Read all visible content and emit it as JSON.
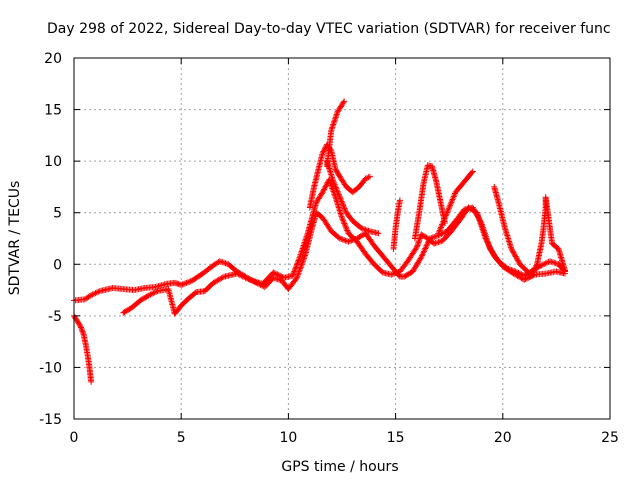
{
  "chart_data": {
    "type": "scatter",
    "title": "Day 298 of 2022, Sidereal Day-to-day VTEC variation (SDTVAR) for receiver func",
    "xlabel": "GPS time / hours",
    "ylabel": "SDTVAR / TECUs",
    "xlim": [
      0,
      25
    ],
    "ylim": [
      -15,
      20
    ],
    "xticks": [
      0,
      5,
      10,
      15,
      20,
      25
    ],
    "yticks": [
      -15,
      -10,
      -5,
      0,
      5,
      10,
      15,
      20
    ],
    "grid": true,
    "marker": "+",
    "series": [
      {
        "name": "main-trace",
        "color": "#ff0000",
        "points": [
          [
            0.0,
            -3.5
          ],
          [
            0.5,
            -3.4
          ],
          [
            0.8,
            -3.0
          ],
          [
            1.2,
            -2.6
          ],
          [
            1.8,
            -2.3
          ],
          [
            2.3,
            -2.4
          ],
          [
            2.8,
            -2.5
          ],
          [
            3.3,
            -2.3
          ],
          [
            3.8,
            -2.2
          ],
          [
            4.3,
            -1.9
          ],
          [
            4.7,
            -1.8
          ],
          [
            5.0,
            -2.0
          ],
          [
            5.5,
            -1.6
          ],
          [
            6.0,
            -0.9
          ],
          [
            6.5,
            -0.1
          ],
          [
            6.8,
            0.3
          ],
          [
            7.2,
            0.0
          ],
          [
            7.6,
            -0.7
          ],
          [
            8.0,
            -1.2
          ],
          [
            8.5,
            -1.8
          ],
          [
            8.9,
            -2.2
          ],
          [
            9.3,
            -1.3
          ],
          [
            9.7,
            -1.6
          ],
          [
            10.0,
            -2.4
          ],
          [
            10.4,
            -1.3
          ],
          [
            10.8,
            1.0
          ],
          [
            11.1,
            3.5
          ],
          [
            11.3,
            5.0
          ],
          [
            11.6,
            4.5
          ],
          [
            12.0,
            3.2
          ],
          [
            12.4,
            2.5
          ],
          [
            12.8,
            2.2
          ],
          [
            13.2,
            2.5
          ],
          [
            13.6,
            3.0
          ],
          [
            14.0,
            1.8
          ],
          [
            14.4,
            0.8
          ],
          [
            14.8,
            -0.2
          ],
          [
            15.2,
            -1.2
          ],
          [
            15.4,
            -1.2
          ],
          [
            15.8,
            -0.7
          ],
          [
            16.2,
            0.7
          ],
          [
            16.6,
            2.5
          ],
          [
            17.0,
            2.8
          ],
          [
            17.4,
            3.2
          ],
          [
            17.8,
            4.2
          ],
          [
            18.2,
            5.3
          ],
          [
            18.6,
            5.5
          ],
          [
            19.0,
            4.0
          ],
          [
            19.4,
            1.5
          ],
          [
            19.8,
            0.3
          ],
          [
            20.2,
            -0.4
          ],
          [
            20.6,
            -0.7
          ],
          [
            21.0,
            -1.1
          ],
          [
            21.4,
            -0.6
          ],
          [
            21.8,
            -0.1
          ],
          [
            22.2,
            0.3
          ],
          [
            22.6,
            0.0
          ],
          [
            22.9,
            -0.7
          ]
        ]
      },
      {
        "name": "lower-trace",
        "color": "#ff0000",
        "points": [
          [
            2.3,
            -4.7
          ],
          [
            2.7,
            -4.2
          ],
          [
            3.1,
            -3.5
          ],
          [
            3.5,
            -3.0
          ],
          [
            3.9,
            -2.6
          ],
          [
            4.4,
            -2.4
          ],
          [
            4.7,
            -4.8
          ],
          [
            5.0,
            -4.0
          ],
          [
            5.3,
            -3.4
          ],
          [
            5.7,
            -2.7
          ],
          [
            6.1,
            -2.6
          ],
          [
            6.5,
            -1.8
          ],
          [
            7.0,
            -1.2
          ],
          [
            7.6,
            -0.9
          ],
          [
            8.2,
            -1.5
          ],
          [
            8.8,
            -1.9
          ],
          [
            9.3,
            -0.8
          ],
          [
            9.8,
            -1.3
          ],
          [
            10.2,
            -1.1
          ],
          [
            10.5,
            0.5
          ],
          [
            10.9,
            3.0
          ],
          [
            11.3,
            6.0
          ],
          [
            11.6,
            7.0
          ],
          [
            11.9,
            8.2
          ],
          [
            12.2,
            6.5
          ],
          [
            12.5,
            4.5
          ],
          [
            12.8,
            3.0
          ],
          [
            13.2,
            2.2
          ],
          [
            13.6,
            1.0
          ],
          [
            14.0,
            0.0
          ],
          [
            14.4,
            -0.8
          ],
          [
            14.8,
            -1.0
          ],
          [
            15.2,
            -0.7
          ],
          [
            15.6,
            0.4
          ],
          [
            16.0,
            1.7
          ],
          [
            16.2,
            2.9
          ],
          [
            16.5,
            2.5
          ],
          [
            16.8,
            2.0
          ],
          [
            17.2,
            2.3
          ],
          [
            17.6,
            3.2
          ],
          [
            18.0,
            4.3
          ],
          [
            18.4,
            5.5
          ],
          [
            18.8,
            5.0
          ],
          [
            19.2,
            2.5
          ],
          [
            19.6,
            0.8
          ],
          [
            20.0,
            -0.2
          ],
          [
            20.5,
            -0.9
          ],
          [
            21.0,
            -1.5
          ],
          [
            21.5,
            -1.0
          ],
          [
            22.0,
            -0.9
          ],
          [
            22.5,
            -0.7
          ],
          [
            22.9,
            -0.9
          ]
        ]
      },
      {
        "name": "early-dip",
        "color": "#ff0000",
        "points": [
          [
            0.0,
            -5.0
          ],
          [
            0.15,
            -5.5
          ],
          [
            0.3,
            -6.0
          ],
          [
            0.45,
            -6.8
          ],
          [
            0.55,
            -7.8
          ],
          [
            0.65,
            -9.0
          ],
          [
            0.72,
            -10.0
          ],
          [
            0.8,
            -11.4
          ]
        ]
      },
      {
        "name": "peak-arc",
        "color": "#ff0000",
        "points": [
          [
            11.0,
            5.5
          ],
          [
            11.2,
            7.5
          ],
          [
            11.4,
            9.2
          ],
          [
            11.6,
            10.8
          ],
          [
            11.8,
            11.6
          ],
          [
            12.0,
            11.0
          ],
          [
            12.2,
            9.2
          ],
          [
            12.4,
            8.5
          ],
          [
            12.7,
            7.5
          ],
          [
            13.0,
            7.0
          ],
          [
            13.3,
            7.5
          ],
          [
            13.6,
            8.3
          ],
          [
            13.8,
            8.5
          ]
        ]
      },
      {
        "name": "peak-spike",
        "color": "#ff0000",
        "points": [
          [
            11.8,
            9.5
          ],
          [
            12.0,
            13.0
          ],
          [
            12.3,
            14.8
          ],
          [
            12.6,
            15.8
          ]
        ]
      },
      {
        "name": "mid-arc",
        "color": "#ff0000",
        "points": [
          [
            11.8,
            10.0
          ],
          [
            12.1,
            8.0
          ],
          [
            12.4,
            6.5
          ],
          [
            12.7,
            5.0
          ],
          [
            13.0,
            4.2
          ],
          [
            13.4,
            3.5
          ],
          [
            13.8,
            3.2
          ],
          [
            14.2,
            3.0
          ]
        ]
      },
      {
        "name": "hump-16",
        "color": "#ff0000",
        "points": [
          [
            15.9,
            2.5
          ],
          [
            16.1,
            5.0
          ],
          [
            16.3,
            7.8
          ],
          [
            16.5,
            9.6
          ],
          [
            16.7,
            9.5
          ],
          [
            16.9,
            8.0
          ],
          [
            17.1,
            6.0
          ],
          [
            17.3,
            4.0
          ]
        ]
      },
      {
        "name": "arc-18",
        "color": "#ff0000",
        "points": [
          [
            17.0,
            3.0
          ],
          [
            17.4,
            5.0
          ],
          [
            17.8,
            7.0
          ],
          [
            18.2,
            8.0
          ],
          [
            18.6,
            9.0
          ]
        ]
      },
      {
        "name": "arc-19",
        "color": "#ff0000",
        "points": [
          [
            19.6,
            7.5
          ],
          [
            19.8,
            6.0
          ],
          [
            20.1,
            3.5
          ],
          [
            20.4,
            1.5
          ],
          [
            20.8,
            0.0
          ],
          [
            21.2,
            -0.8
          ]
        ]
      },
      {
        "name": "tail-22",
        "color": "#ff0000",
        "points": [
          [
            21.3,
            -1.2
          ],
          [
            21.6,
            0.0
          ],
          [
            21.8,
            2.0
          ],
          [
            21.9,
            3.5
          ],
          [
            22.0,
            5.5
          ],
          [
            22.0,
            6.5
          ],
          [
            22.3,
            2.0
          ],
          [
            22.6,
            1.5
          ],
          [
            22.9,
            -0.6
          ]
        ]
      },
      {
        "name": "rise-15",
        "color": "#ff0000",
        "points": [
          [
            14.9,
            1.5
          ],
          [
            15.0,
            3.5
          ],
          [
            15.1,
            5.0
          ],
          [
            15.2,
            6.2
          ]
        ]
      }
    ]
  }
}
